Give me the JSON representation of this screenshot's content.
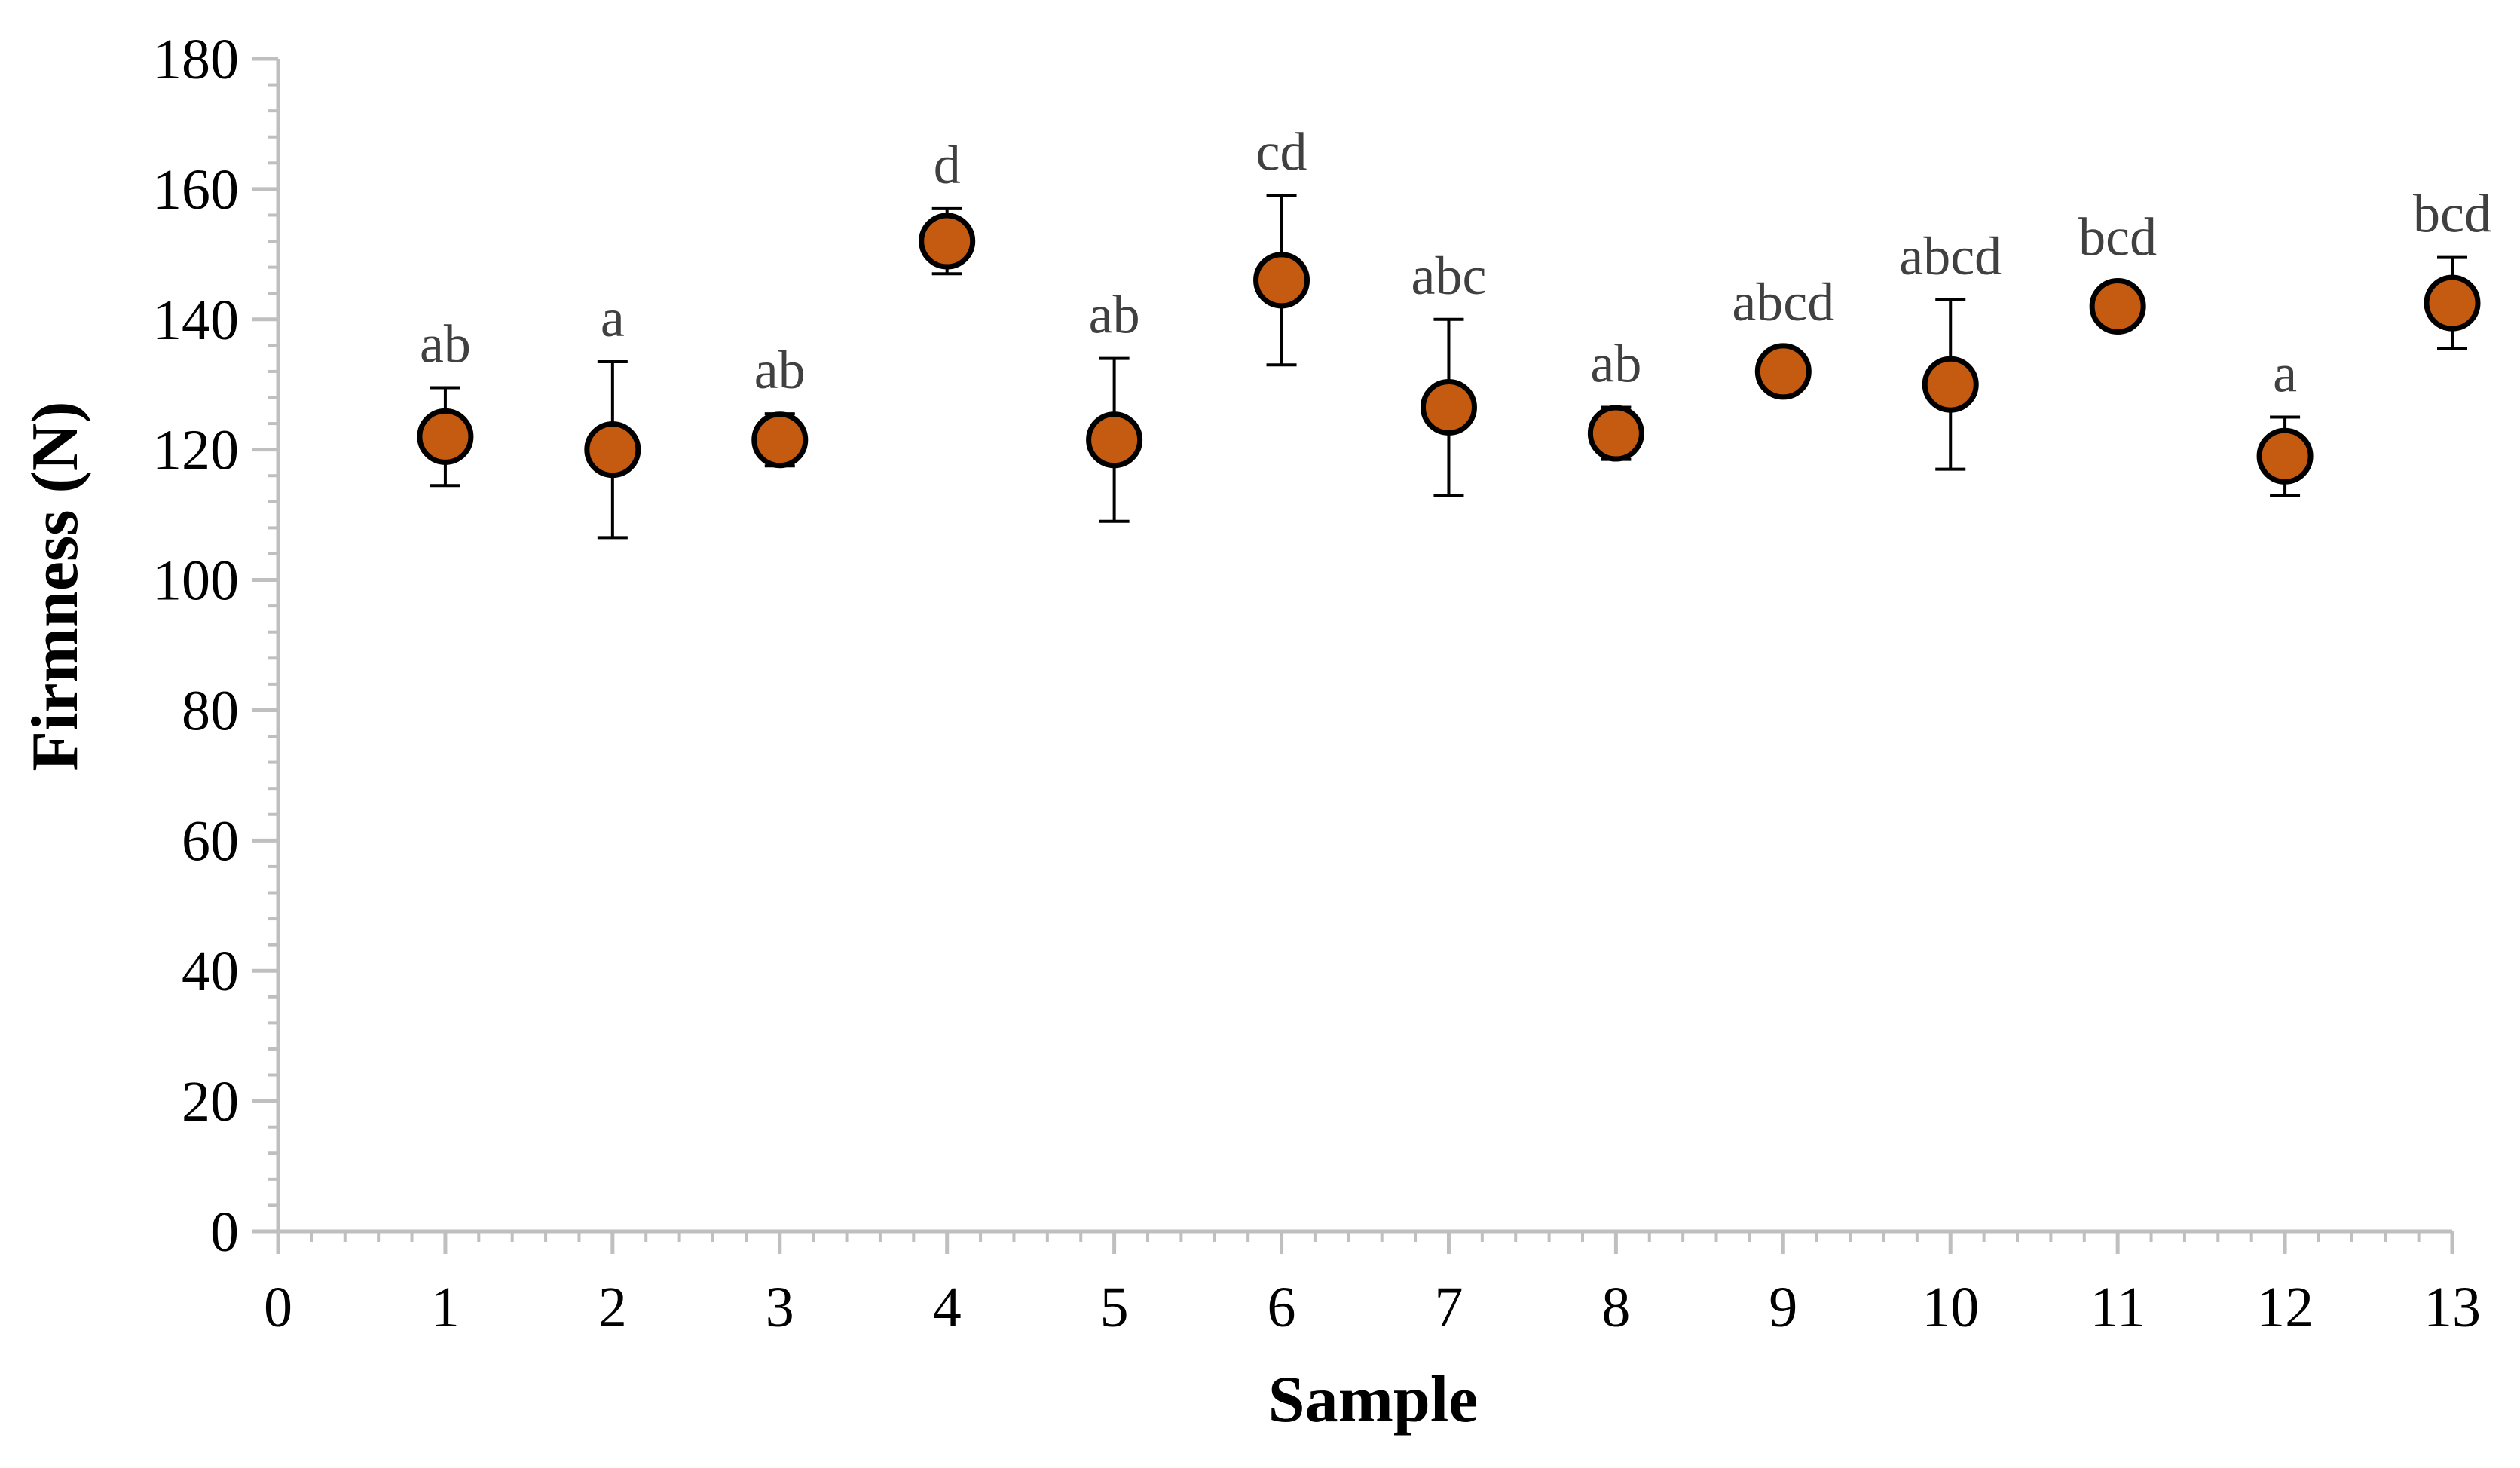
{
  "chart_data": {
    "type": "scatter",
    "title": "",
    "xlabel": "Sample",
    "ylabel": "Firmness (N)",
    "xlim": [
      0,
      13
    ],
    "ylim": [
      0,
      180
    ],
    "x_ticks": [
      0,
      1,
      2,
      3,
      4,
      5,
      6,
      7,
      8,
      9,
      10,
      11,
      12,
      13
    ],
    "y_ticks": [
      0,
      20,
      40,
      60,
      80,
      100,
      120,
      140,
      160,
      180
    ],
    "grid": false,
    "legend": "none",
    "marker_color": "#C55A11",
    "marker_edge_color": "#000000",
    "series": [
      {
        "points": [
          {
            "x": 1,
            "y": 122,
            "err": 7.5,
            "label": "ab"
          },
          {
            "x": 2,
            "y": 120,
            "err": 13.5,
            "label": "a"
          },
          {
            "x": 3,
            "y": 121.5,
            "err": 4,
            "label": "ab"
          },
          {
            "x": 4,
            "y": 152,
            "err": 5,
            "label": "d"
          },
          {
            "x": 5,
            "y": 121.5,
            "err": 12.5,
            "label": "ab"
          },
          {
            "x": 6,
            "y": 146,
            "err": 13,
            "label": "cd"
          },
          {
            "x": 7,
            "y": 126.5,
            "err": 13.5,
            "label": "abc"
          },
          {
            "x": 8,
            "y": 122.5,
            "err": 4,
            "label": "ab"
          },
          {
            "x": 9,
            "y": 132,
            "err": 0,
            "label": "abcd"
          },
          {
            "x": 10,
            "y": 130,
            "err": 13,
            "label": "abcd"
          },
          {
            "x": 11,
            "y": 142,
            "err": 0,
            "label": "bcd"
          },
          {
            "x": 12,
            "y": 119,
            "err": 6,
            "label": "a"
          },
          {
            "x": 13,
            "y": 142.5,
            "err": 7,
            "label": "bcd"
          }
        ]
      }
    ]
  }
}
